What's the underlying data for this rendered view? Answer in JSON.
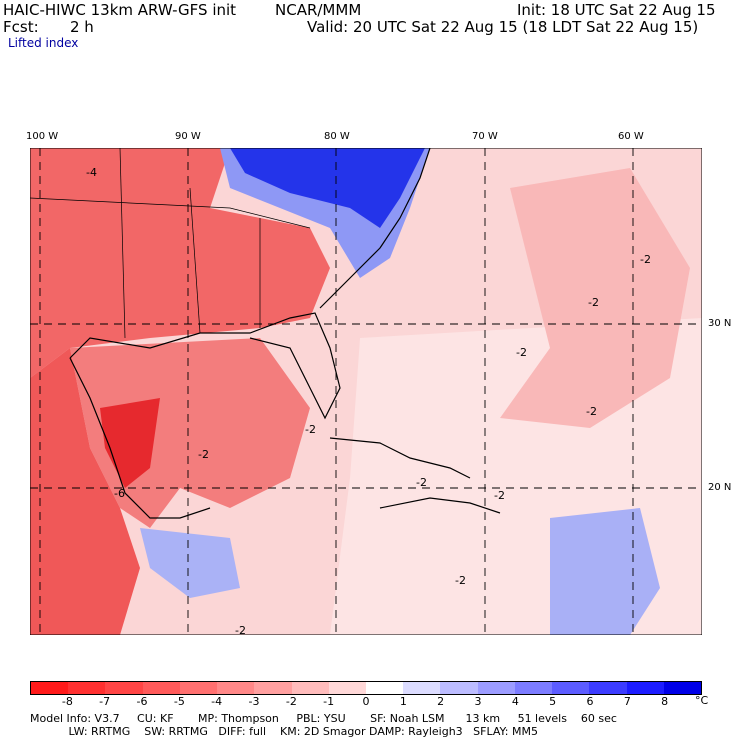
{
  "header": {
    "model_title": "HAIC-HIWC 13km ARW-GFS init",
    "org": "NCAR/MMM",
    "init": "Init: 18 UTC Sat 22 Aug 15",
    "fcst_label": "Fcst:",
    "fcst_value": "2 h",
    "valid": "Valid: 20 UTC Sat 22 Aug 15 (18 LDT Sat 22 Aug 15)",
    "field": "Lifted index"
  },
  "map": {
    "lon_labels": [
      "100 W",
      "90 W",
      "80 W",
      "70 W",
      "60 W"
    ],
    "lat_labels": [
      "30 N",
      "20 N"
    ],
    "contour_labels": [
      "-4",
      "-2",
      "-2",
      "-2",
      "-2",
      "-2",
      "-2",
      "-2",
      "-2",
      "-6",
      "-2",
      "-2"
    ],
    "colors": {
      "strong_unstable": "#e8202a",
      "unstable": "#f06a6a",
      "mild_unstable": "#f8b4b4",
      "neutral": "#fde0e0",
      "stable": "#8c96f4",
      "very_stable": "#1c28e8",
      "background": "#fbd0d0"
    }
  },
  "colorbar": {
    "ticks": [
      "-8",
      "-7",
      "-6",
      "-5",
      "-4",
      "-3",
      "-2",
      "-1",
      "0",
      "1",
      "2",
      "3",
      "4",
      "5",
      "6",
      "7",
      "8"
    ],
    "unit": "°C",
    "colors": [
      "#ff1a1a",
      "#ff3030",
      "#ff4545",
      "#ff5a5a",
      "#ff7070",
      "#ff8888",
      "#ffa0a0",
      "#ffbcbc",
      "#ffd8d8",
      "#ffffff",
      "#dcdcff",
      "#bcbcff",
      "#9c9cff",
      "#7c7cff",
      "#5c5cff",
      "#3c3cff",
      "#1c1cff",
      "#0000e8"
    ]
  },
  "footer": {
    "line1": "Model Info: V3.7     CU: KF       MP: Thompson     PBL: YSU       SF: Noah LSM      13 km     51 levels    60 sec",
    "line2": "           LW: RRTMG    SW: RRTMG   DIFF: full    KM: 2D Smagor DAMP: Rayleigh3   SFLAY: MM5"
  }
}
